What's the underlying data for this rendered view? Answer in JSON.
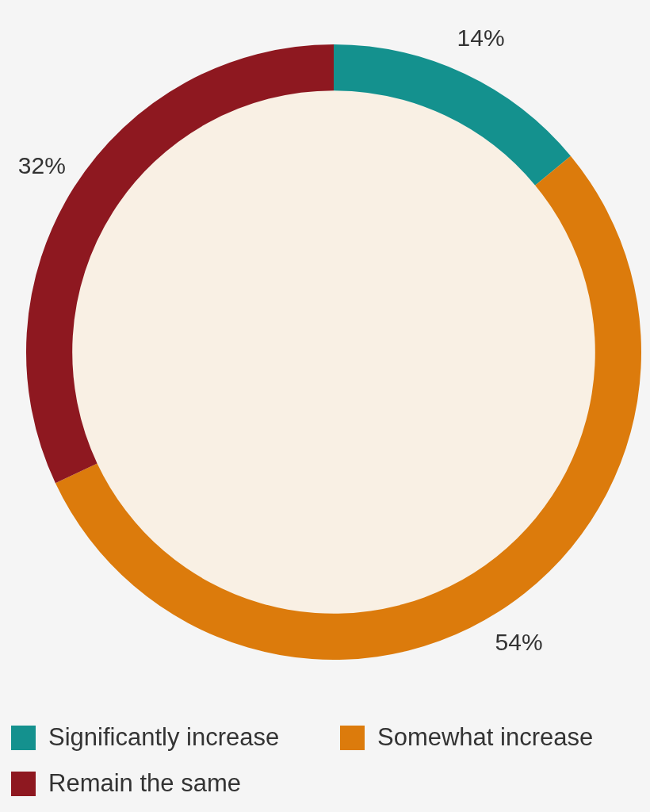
{
  "chart_data": {
    "type": "donut",
    "categories": [
      "Significantly increase",
      "Somewhat increase",
      "Remain the same"
    ],
    "values": [
      14,
      54,
      32
    ],
    "colors": [
      "#14918e",
      "#dc7b0c",
      "#8e1820"
    ],
    "value_labels": [
      "14%",
      "54%",
      "32%"
    ],
    "legend": "bottom"
  }
}
